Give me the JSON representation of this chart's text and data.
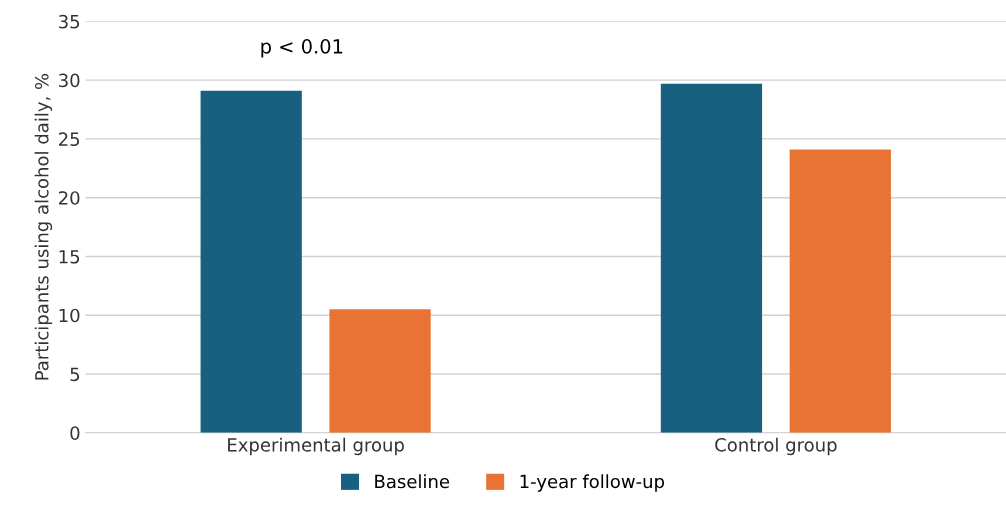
{
  "chart_data": {
    "type": "bar",
    "ylabel": "Participants using alcohol daily, %",
    "categories": [
      "Experimental group",
      "Control group"
    ],
    "series": [
      {
        "name": "Baseline",
        "color": "#17607f",
        "values": [
          29.1,
          29.7
        ]
      },
      {
        "name": "1-year follow-up",
        "color": "#e87334",
        "values": [
          10.5,
          24.1
        ]
      }
    ],
    "ylim": [
      0,
      35
    ],
    "yticks": [
      0,
      5,
      10,
      15,
      20,
      25,
      30,
      35
    ],
    "grid": "y",
    "legend": "bottom",
    "annotations": [
      "p < 0.01"
    ]
  }
}
